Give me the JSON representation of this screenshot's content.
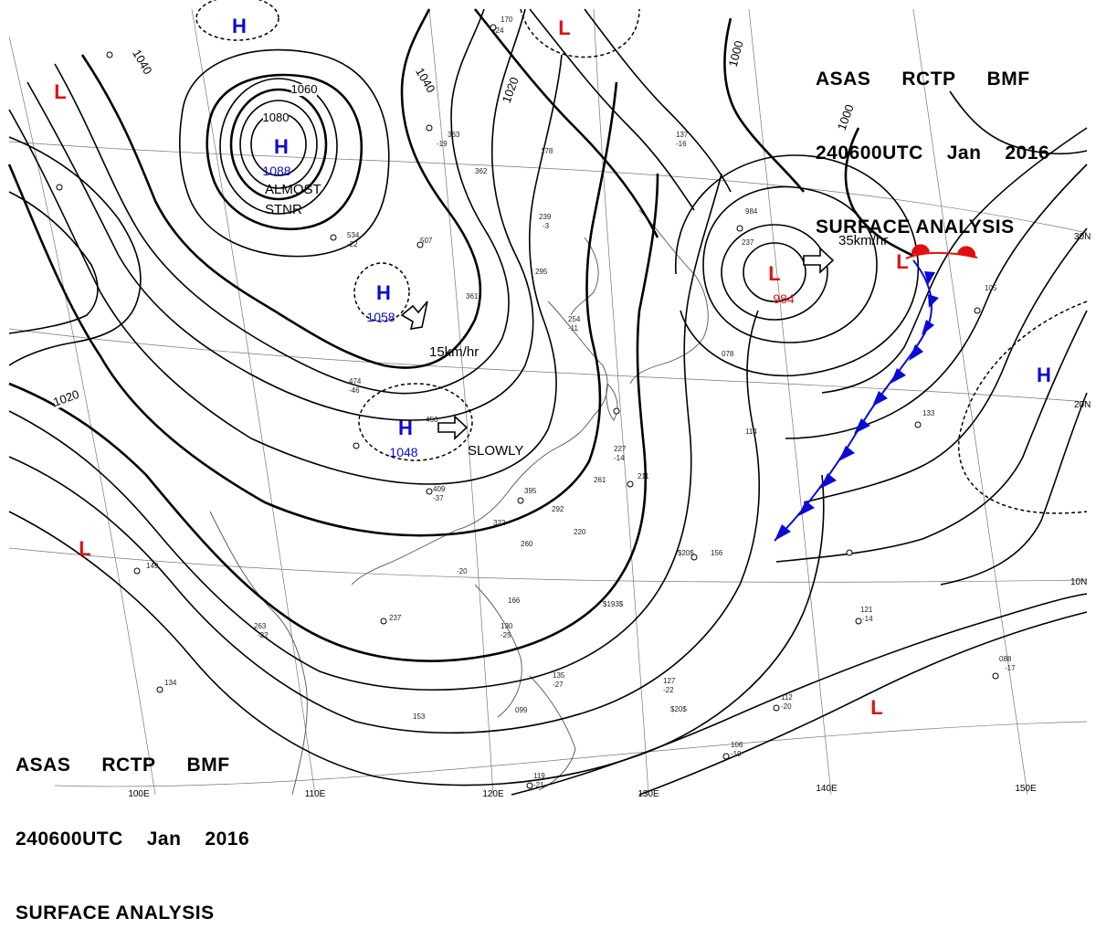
{
  "header": {
    "line1": [
      "ASAS",
      "RCTP",
      "BMF"
    ],
    "line2": [
      "240600UTC",
      "Jan",
      "2016"
    ],
    "line3": "SURFACE ANALYSIS"
  },
  "colors": {
    "high": "#0a0ad6",
    "low": "#e01010",
    "isobar": "#000000",
    "coast": "#555555",
    "cold_front": "#0a0ad6",
    "warm_front": "#e01010"
  },
  "pressure_centers": [
    {
      "type": "H",
      "value": "1088",
      "note_lines": [
        "ALMOST",
        "STNR"
      ]
    },
    {
      "type": "H",
      "value": "1058",
      "movement": "15km/hr"
    },
    {
      "type": "H",
      "value": "1048",
      "movement": "SLOWLY"
    },
    {
      "type": "L",
      "value": "984",
      "movement": "35km/hr"
    },
    {
      "type": "H",
      "value": ""
    },
    {
      "type": "H",
      "value": ""
    },
    {
      "type": "L",
      "value": ""
    },
    {
      "type": "L",
      "value": ""
    },
    {
      "type": "L",
      "value": ""
    },
    {
      "type": "L",
      "value": ""
    },
    {
      "type": "L",
      "value": ""
    }
  ],
  "isobar_labels": [
    "1040",
    "1060",
    "1080",
    "1040",
    "1020",
    "1000",
    "1000",
    "1020"
  ],
  "longitude_labels": [
    "100E",
    "110E",
    "120E",
    "130E",
    "140E",
    "150E"
  ],
  "latitude_labels": [
    "30N",
    "20N",
    "10N"
  ],
  "station_values": [
    "170",
    "-24",
    "363",
    "-19",
    "362",
    "239",
    "-3",
    "295",
    "534",
    "-22",
    "507",
    "474",
    "-46",
    "456",
    "409",
    "-37",
    "395",
    "292",
    "322",
    "260",
    "237",
    "-20",
    "220",
    "227",
    "-14",
    "261",
    "211",
    "137",
    "-16",
    "105",
    "133",
    "114",
    "156",
    "121",
    "-14",
    "088",
    "-17",
    "127",
    "-22",
    "112",
    "-20",
    "106",
    "-19",
    "119",
    "-21",
    "135",
    "-27",
    "130",
    "-25",
    "166",
    "099",
    "153",
    "263",
    "-22",
    "134",
    "149",
    "178",
    "254",
    "-11",
    "361",
    "078",
    "984",
    "237",
    "$20$",
    "$193$",
    "$20$"
  ]
}
